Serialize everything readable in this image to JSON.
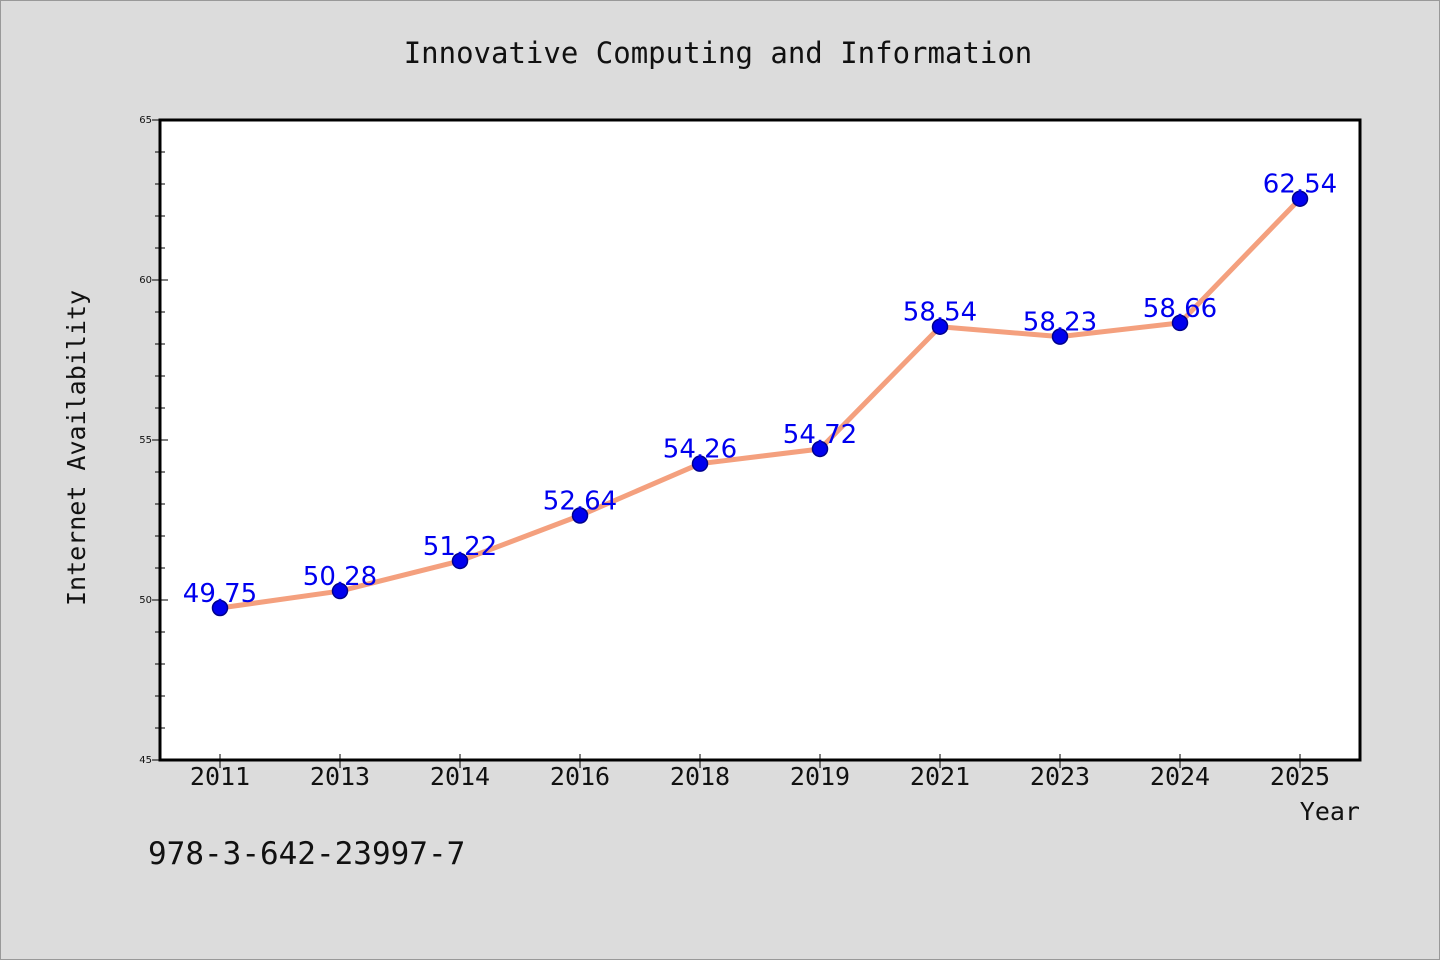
{
  "chart_data": {
    "type": "line",
    "title": "Innovative Computing and Information",
    "xlabel": "Year",
    "ylabel": "Internet Availability",
    "categories": [
      "2011",
      "2013",
      "2014",
      "2016",
      "2018",
      "2019",
      "2021",
      "2023",
      "2024",
      "2025"
    ],
    "series": [
      {
        "values": [
          49.75,
          50.28,
          51.22,
          52.64,
          54.26,
          54.72,
          58.54,
          58.23,
          58.66,
          62.54
        ]
      }
    ],
    "data_labels": [
      "49.75",
      "50.28",
      "51.22",
      "52.64",
      "54.26",
      "54.72",
      "58.54",
      "58.23",
      "58.66",
      "62.54"
    ],
    "ylim": [
      45,
      65
    ],
    "yticks": [
      "45",
      "50",
      "55",
      "60",
      "65"
    ],
    "grid": false,
    "legend": "none",
    "colors": {
      "line": "#f4a07e",
      "marker": "#0000ee",
      "marker_edge": "#00008b",
      "data_label": "#0000ee",
      "background": "#dcdcdc",
      "plot_background": "#ffffff"
    }
  },
  "footer": {
    "isbn": "978-3-642-23997-7"
  }
}
